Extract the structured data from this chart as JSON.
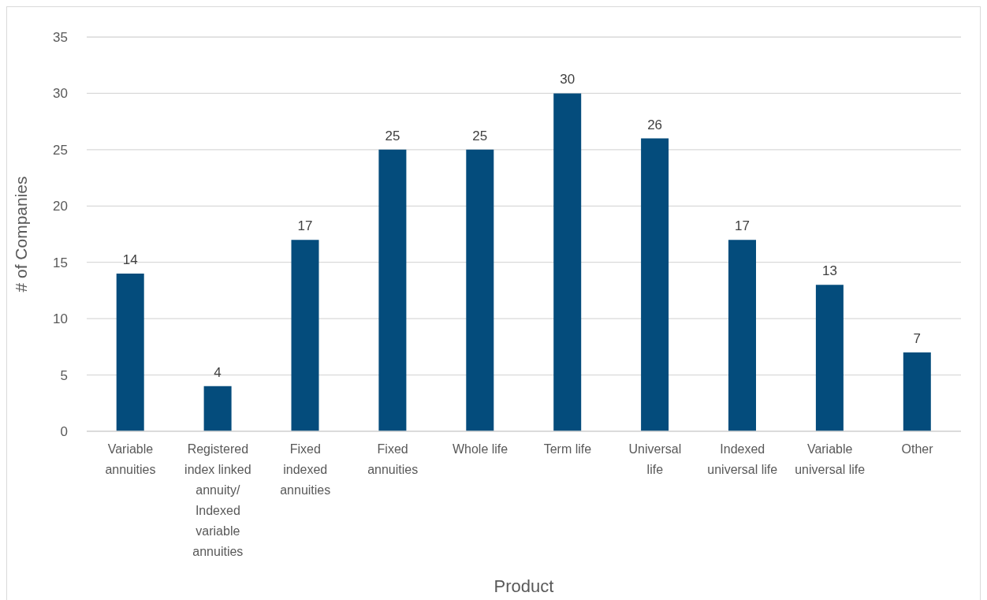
{
  "chart_data": {
    "type": "bar",
    "xlabel": "Product",
    "ylabel": "# of Companies",
    "categories": [
      "Variable annuities",
      "Registered index linked annuity/ Indexed variable annuities",
      "Fixed indexed annuities",
      "Fixed annuities",
      "Whole life",
      "Term life",
      "Universal life",
      "Indexed universal life",
      "Variable universal life",
      "Other"
    ],
    "values": [
      14,
      4,
      17,
      25,
      25,
      30,
      26,
      17,
      13,
      7
    ],
    "color": "#044c7c",
    "ylim": [
      0,
      35
    ],
    "yticks": [
      0,
      5,
      10,
      15,
      20,
      25,
      30,
      35
    ],
    "grid": "y",
    "data_labels": true
  }
}
